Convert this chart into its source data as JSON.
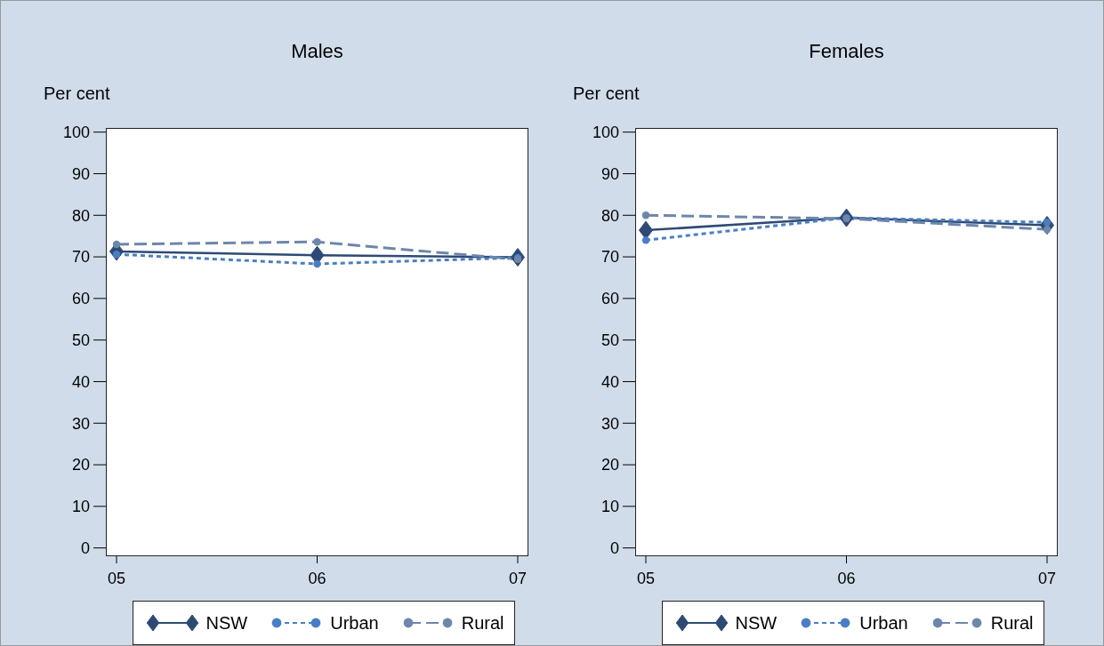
{
  "chart_data": [
    {
      "type": "line",
      "title": "Males",
      "ylabel": "Per cent",
      "categories": [
        "05",
        "06",
        "07"
      ],
      "ylim": [
        -2,
        101
      ],
      "yticks": [
        0,
        10,
        20,
        30,
        40,
        50,
        60,
        70,
        80,
        90,
        100
      ],
      "grid": false,
      "legend": "bottom",
      "series": [
        {
          "name": "NSW",
          "color": "#2e4a74",
          "marker": "diamond",
          "line_style": "solid",
          "values": [
            71.3,
            70.4,
            69.9
          ]
        },
        {
          "name": "Urban",
          "color": "#4a7ec4",
          "marker": "circle",
          "line_style": "dotted",
          "values": [
            70.6,
            68.3,
            69.8
          ]
        },
        {
          "name": "Rural",
          "color": "#6d87aa",
          "marker": "circle",
          "line_style": "dashed",
          "values": [
            73.0,
            73.6,
            69.4
          ]
        }
      ]
    },
    {
      "type": "line",
      "title": "Females",
      "ylabel": "Per cent",
      "categories": [
        "05",
        "06",
        "07"
      ],
      "ylim": [
        -2,
        101
      ],
      "yticks": [
        0,
        10,
        20,
        30,
        40,
        50,
        60,
        70,
        80,
        90,
        100
      ],
      "grid": false,
      "legend": "bottom",
      "series": [
        {
          "name": "NSW",
          "color": "#2e4a74",
          "marker": "diamond",
          "line_style": "solid",
          "values": [
            76.4,
            79.4,
            77.6
          ]
        },
        {
          "name": "Urban",
          "color": "#4a7ec4",
          "marker": "circle",
          "line_style": "dotted",
          "values": [
            74.0,
            79.4,
            78.3
          ]
        },
        {
          "name": "Rural",
          "color": "#6d87aa",
          "marker": "circle",
          "line_style": "dashed",
          "values": [
            80.0,
            79.2,
            76.6
          ]
        }
      ]
    }
  ]
}
